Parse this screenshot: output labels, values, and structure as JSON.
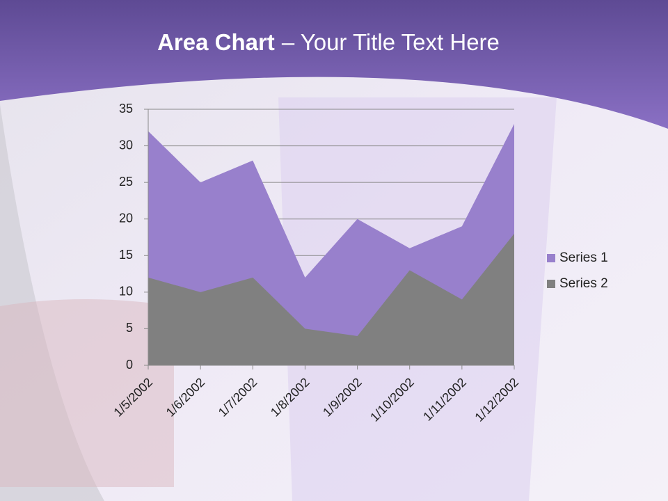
{
  "chart_data": {
    "type": "area",
    "title": [
      "Area Chart",
      "– Your Title Text Here"
    ],
    "categories": [
      "1/5/2002",
      "1/6/2002",
      "1/7/2002",
      "1/8/2002",
      "1/9/2002",
      "1/10/2002",
      "1/11/2002",
      "1/12/2002"
    ],
    "series": [
      {
        "name": "Series 1",
        "color": "#9880cc",
        "values": [
          32,
          25,
          28,
          12,
          20,
          16,
          19,
          33
        ]
      },
      {
        "name": "Series 2",
        "color": "#808080",
        "values": [
          12,
          10,
          12,
          5,
          4,
          13,
          9,
          18
        ]
      }
    ],
    "ylim": [
      0,
      35
    ],
    "yticks": [
      0,
      5,
      10,
      15,
      20,
      25,
      30,
      35
    ],
    "grid": true,
    "legend": "right"
  }
}
